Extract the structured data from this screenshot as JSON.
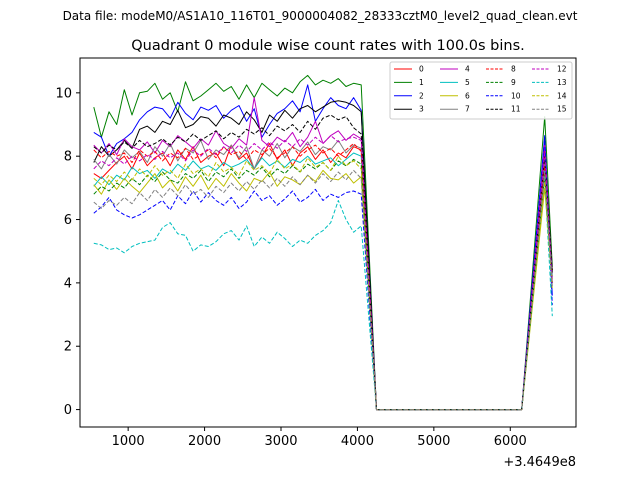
{
  "chart_data": {
    "type": "line",
    "suptitle": "Data file: modeM0/AS1A10_116T01_9000004082_28333cztM0_level2_quad_clean.evt",
    "title": "Quadrant 0 module wise count rates with 100.0s bins.",
    "xlabel": "",
    "ylabel": "",
    "x_offset_label": "+3.4649e8",
    "xlim": [
      370,
      6860
    ],
    "ylim": [
      -0.55,
      11.1
    ],
    "xticks": [
      1000,
      2000,
      3000,
      4000,
      5000,
      6000
    ],
    "yticks": [
      0,
      2,
      4,
      6,
      8,
      10
    ],
    "legend_location": "upper right",
    "x": [
      550,
      650,
      750,
      850,
      950,
      1050,
      1150,
      1250,
      1350,
      1450,
      1550,
      1650,
      1750,
      1850,
      1950,
      2050,
      2150,
      2250,
      2350,
      2450,
      2550,
      2650,
      2750,
      2850,
      2950,
      3050,
      3150,
      3250,
      3350,
      3450,
      3550,
      3650,
      3750,
      3850,
      3950,
      4050,
      4250,
      6150,
      6450,
      6550
    ],
    "series": [
      {
        "name": "0",
        "color": "#ff0000",
        "dash": "solid",
        "values": [
          7.45,
          7.3,
          7.55,
          7.8,
          8.0,
          7.6,
          8.1,
          7.7,
          7.95,
          8.1,
          7.7,
          8.2,
          7.9,
          8.3,
          7.8,
          8.0,
          8.1,
          7.7,
          8.35,
          7.9,
          8.1,
          7.6,
          8.0,
          8.4,
          7.9,
          8.2,
          7.7,
          8.1,
          8.3,
          7.9,
          8.2,
          7.8,
          8.1,
          7.95,
          8.3,
          8.2,
          0.0,
          0.0,
          7.8,
          4.4
        ]
      },
      {
        "name": "1",
        "color": "#008000",
        "dash": "solid",
        "values": [
          9.55,
          8.6,
          9.4,
          9.0,
          10.1,
          9.3,
          10.0,
          10.05,
          10.3,
          9.8,
          10.0,
          9.4,
          10.35,
          9.75,
          9.9,
          10.1,
          10.3,
          10.05,
          10.2,
          9.8,
          10.25,
          9.85,
          10.3,
          10.1,
          9.9,
          10.15,
          10.0,
          10.35,
          10.55,
          10.25,
          10.4,
          10.3,
          10.45,
          10.2,
          10.3,
          10.25,
          0.0,
          0.0,
          9.25,
          4.5
        ]
      },
      {
        "name": "2",
        "color": "#0000ff",
        "dash": "solid",
        "values": [
          8.75,
          8.6,
          8.0,
          8.4,
          8.55,
          8.75,
          9.15,
          9.4,
          9.55,
          9.5,
          9.2,
          9.7,
          9.35,
          9.15,
          9.55,
          9.45,
          9.6,
          9.2,
          9.45,
          9.6,
          9.1,
          9.5,
          8.6,
          9.0,
          9.35,
          9.5,
          9.75,
          9.4,
          10.25,
          9.1,
          9.5,
          9.85,
          9.6,
          9.5,
          9.85,
          9.45,
          0.0,
          0.0,
          8.65,
          3.6
        ]
      },
      {
        "name": "3",
        "color": "#000000",
        "dash": "solid",
        "values": [
          7.8,
          8.3,
          8.0,
          8.2,
          8.5,
          8.25,
          8.85,
          8.95,
          8.75,
          9.1,
          9.0,
          9.45,
          8.9,
          9.0,
          9.25,
          9.2,
          8.95,
          9.3,
          9.2,
          9.0,
          9.4,
          9.15,
          8.75,
          9.3,
          9.1,
          9.45,
          9.2,
          9.5,
          9.6,
          9.4,
          9.55,
          9.7,
          9.75,
          9.7,
          9.6,
          9.4,
          0.0,
          0.0,
          8.2,
          4.4
        ]
      },
      {
        "name": "4",
        "color": "#bf00bf",
        "dash": "solid",
        "values": [
          8.35,
          8.1,
          8.4,
          8.05,
          8.55,
          8.3,
          8.2,
          8.45,
          8.1,
          8.5,
          8.3,
          8.65,
          8.45,
          8.25,
          8.55,
          8.35,
          8.8,
          8.4,
          8.25,
          8.55,
          8.35,
          9.85,
          8.5,
          8.3,
          8.6,
          8.45,
          8.75,
          8.3,
          8.6,
          9.1,
          8.4,
          8.65,
          8.8,
          8.5,
          8.7,
          8.55,
          0.0,
          0.0,
          8.4,
          4.0
        ]
      },
      {
        "name": "5",
        "color": "#00bfbf",
        "dash": "solid",
        "values": [
          7.05,
          7.35,
          7.1,
          7.4,
          7.25,
          7.65,
          7.45,
          7.55,
          7.3,
          7.6,
          7.45,
          7.75,
          7.55,
          7.85,
          7.6,
          7.7,
          7.55,
          7.8,
          7.65,
          7.75,
          7.9,
          7.6,
          7.95,
          7.7,
          7.85,
          7.65,
          7.9,
          7.8,
          8.0,
          7.75,
          7.85,
          7.95,
          7.7,
          7.9,
          8.1,
          8.0,
          0.0,
          0.0,
          7.6,
          4.2
        ]
      },
      {
        "name": "6",
        "color": "#bfbf00",
        "dash": "solid",
        "values": [
          7.1,
          6.8,
          7.25,
          6.95,
          7.3,
          7.05,
          6.85,
          7.15,
          7.45,
          7.0,
          7.25,
          6.9,
          7.35,
          7.05,
          7.4,
          6.95,
          7.3,
          7.05,
          7.45,
          7.15,
          6.9,
          7.3,
          7.2,
          7.5,
          7.05,
          7.35,
          7.25,
          7.1,
          7.4,
          7.2,
          7.55,
          7.3,
          7.25,
          7.45,
          7.15,
          7.35,
          0.0,
          0.0,
          7.0,
          4.0
        ]
      },
      {
        "name": "7",
        "color": "#808080",
        "dash": "solid",
        "values": [
          7.9,
          7.6,
          8.05,
          7.75,
          8.2,
          7.95,
          8.15,
          7.8,
          8.3,
          8.0,
          8.4,
          7.85,
          8.25,
          8.1,
          8.5,
          7.9,
          8.2,
          8.05,
          8.35,
          7.95,
          8.3,
          7.6,
          8.2,
          8.0,
          8.4,
          7.95,
          8.3,
          8.15,
          8.45,
          8.05,
          8.3,
          8.2,
          8.5,
          8.1,
          8.35,
          8.25,
          0.0,
          0.0,
          7.9,
          4.3
        ]
      },
      {
        "name": "8",
        "color": "#ff0000",
        "dash": "dashed",
        "values": [
          8.2,
          7.95,
          8.15,
          8.0,
          8.1,
          7.8,
          8.2,
          8.0,
          8.15,
          7.85,
          8.1,
          7.95,
          8.25,
          7.9,
          8.05,
          8.2,
          7.95,
          8.3,
          8.05,
          8.15,
          7.9,
          8.2,
          8.05,
          8.25,
          7.95,
          8.1,
          8.3,
          8.0,
          8.2,
          8.35,
          8.1,
          8.25,
          8.0,
          8.2,
          8.4,
          8.15,
          0.0,
          0.0,
          7.7,
          4.1
        ]
      },
      {
        "name": "9",
        "color": "#008000",
        "dash": "dashed",
        "values": [
          6.8,
          7.05,
          6.9,
          7.15,
          7.0,
          7.3,
          7.1,
          7.4,
          7.2,
          7.5,
          7.25,
          7.15,
          7.45,
          7.3,
          7.55,
          7.2,
          7.5,
          7.35,
          7.6,
          7.3,
          7.55,
          7.4,
          7.65,
          7.35,
          7.6,
          7.45,
          7.7,
          7.5,
          7.75,
          7.6,
          7.8,
          7.55,
          7.85,
          7.7,
          7.9,
          7.75,
          0.0,
          0.0,
          7.4,
          4.0
        ]
      },
      {
        "name": "10",
        "color": "#0000ff",
        "dash": "dashed",
        "values": [
          6.2,
          6.4,
          6.7,
          6.3,
          6.15,
          6.05,
          6.15,
          6.3,
          6.45,
          6.6,
          6.3,
          6.75,
          6.5,
          6.9,
          6.55,
          6.85,
          6.6,
          6.45,
          6.7,
          6.35,
          6.55,
          6.9,
          6.6,
          6.75,
          6.45,
          6.65,
          6.9,
          6.55,
          6.7,
          6.95,
          6.6,
          6.8,
          6.7,
          6.85,
          6.9,
          6.8,
          0.0,
          0.0,
          8.6,
          3.3
        ]
      },
      {
        "name": "11",
        "color": "#000000",
        "dash": "dashed",
        "values": [
          8.3,
          8.1,
          8.35,
          8.2,
          8.45,
          8.25,
          8.5,
          8.3,
          8.4,
          8.55,
          8.35,
          8.6,
          8.45,
          8.7,
          8.5,
          8.65,
          8.8,
          8.55,
          8.75,
          8.6,
          8.85,
          8.7,
          8.9,
          8.65,
          8.95,
          8.8,
          9.0,
          8.75,
          9.1,
          8.85,
          9.2,
          9.3,
          9.15,
          9.25,
          8.9,
          8.7,
          0.0,
          0.0,
          8.0,
          4.3
        ]
      },
      {
        "name": "12",
        "color": "#bf00bf",
        "dash": "dashed",
        "values": [
          7.6,
          7.85,
          7.7,
          7.95,
          7.75,
          8.0,
          7.85,
          8.05,
          7.9,
          8.15,
          7.95,
          8.1,
          7.85,
          8.2,
          8.0,
          8.25,
          8.05,
          8.3,
          8.1,
          8.35,
          8.15,
          8.4,
          8.2,
          8.45,
          8.25,
          8.5,
          8.3,
          8.55,
          8.35,
          8.6,
          8.4,
          8.65,
          8.45,
          8.55,
          8.6,
          8.5,
          0.0,
          0.0,
          8.1,
          4.0
        ]
      },
      {
        "name": "13",
        "color": "#00bfbf",
        "dash": "dashed",
        "values": [
          5.25,
          5.2,
          5.05,
          5.1,
          4.95,
          5.15,
          5.25,
          5.3,
          5.35,
          5.75,
          5.9,
          5.55,
          5.5,
          5.0,
          5.2,
          5.15,
          5.3,
          5.55,
          5.65,
          5.35,
          5.8,
          5.15,
          5.45,
          5.25,
          5.6,
          5.4,
          5.15,
          5.35,
          5.25,
          5.5,
          5.65,
          5.9,
          6.6,
          6.0,
          5.6,
          5.8,
          0.0,
          0.0,
          7.3,
          2.95
        ]
      },
      {
        "name": "14",
        "color": "#bfbf00",
        "dash": "dashed",
        "values": [
          7.3,
          7.1,
          7.4,
          7.2,
          7.5,
          7.25,
          7.6,
          7.35,
          7.7,
          7.4,
          7.55,
          7.3,
          7.75,
          7.45,
          7.6,
          7.35,
          7.8,
          7.5,
          7.65,
          7.4,
          7.85,
          7.55,
          7.7,
          7.45,
          7.9,
          7.6,
          7.75,
          7.5,
          7.95,
          7.65,
          7.8,
          7.55,
          8.0,
          7.7,
          7.85,
          7.6,
          0.0,
          0.0,
          7.2,
          3.8
        ]
      },
      {
        "name": "15",
        "color": "#808080",
        "dash": "dashed",
        "values": [
          6.55,
          6.35,
          6.6,
          6.45,
          6.7,
          6.5,
          6.85,
          6.6,
          6.95,
          6.7,
          7.0,
          6.75,
          7.1,
          6.8,
          6.95,
          6.7,
          7.05,
          6.85,
          7.15,
          6.9,
          7.2,
          6.95,
          7.25,
          7.0,
          7.3,
          7.05,
          7.35,
          7.1,
          7.4,
          7.15,
          7.45,
          7.2,
          7.5,
          7.25,
          7.55,
          7.3,
          0.0,
          0.0,
          7.5,
          3.9
        ]
      }
    ]
  }
}
